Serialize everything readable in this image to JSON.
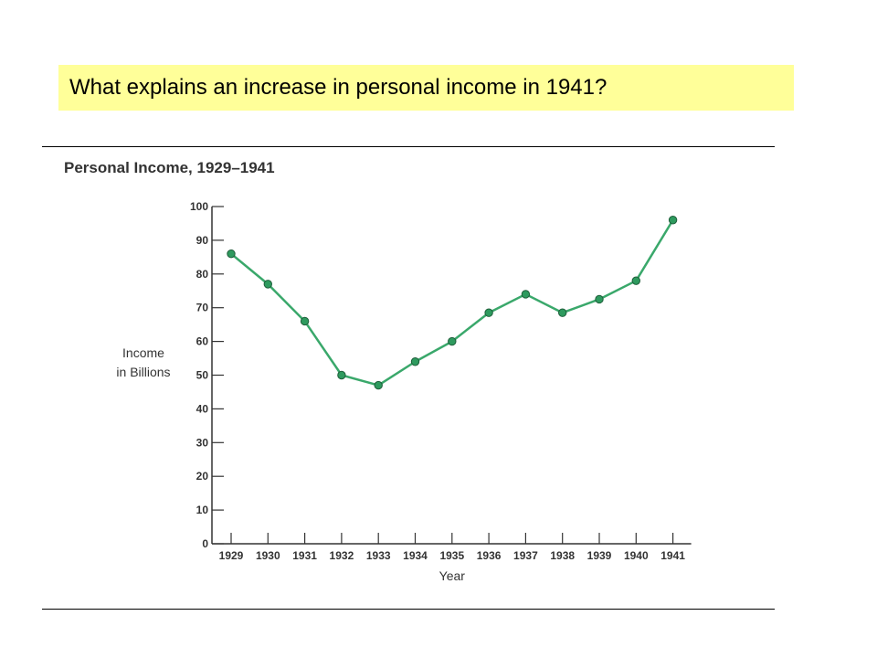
{
  "question": "What explains an increase in personal income in 1941?",
  "colors": {
    "banner": "#ffff99",
    "line": "#3aa86b",
    "marker": "#2e9a5e"
  },
  "chart_data": {
    "type": "line",
    "title": "Personal Income, 1929–1941",
    "xlabel": "Year",
    "ylabel_lines": [
      "Income",
      "in Billions"
    ],
    "categories": [
      "1929",
      "1930",
      "1931",
      "1932",
      "1933",
      "1934",
      "1935",
      "1936",
      "1937",
      "1938",
      "1939",
      "1940",
      "1941"
    ],
    "series": [
      {
        "values": [
          86,
          77,
          66,
          50,
          47,
          54,
          60,
          68.5,
          74,
          68.5,
          72.5,
          78,
          96
        ]
      }
    ],
    "ylim": [
      0,
      100
    ],
    "yticks": [
      0,
      10,
      20,
      30,
      40,
      50,
      60,
      70,
      80,
      90,
      100
    ],
    "grid": false,
    "legend": "none"
  }
}
